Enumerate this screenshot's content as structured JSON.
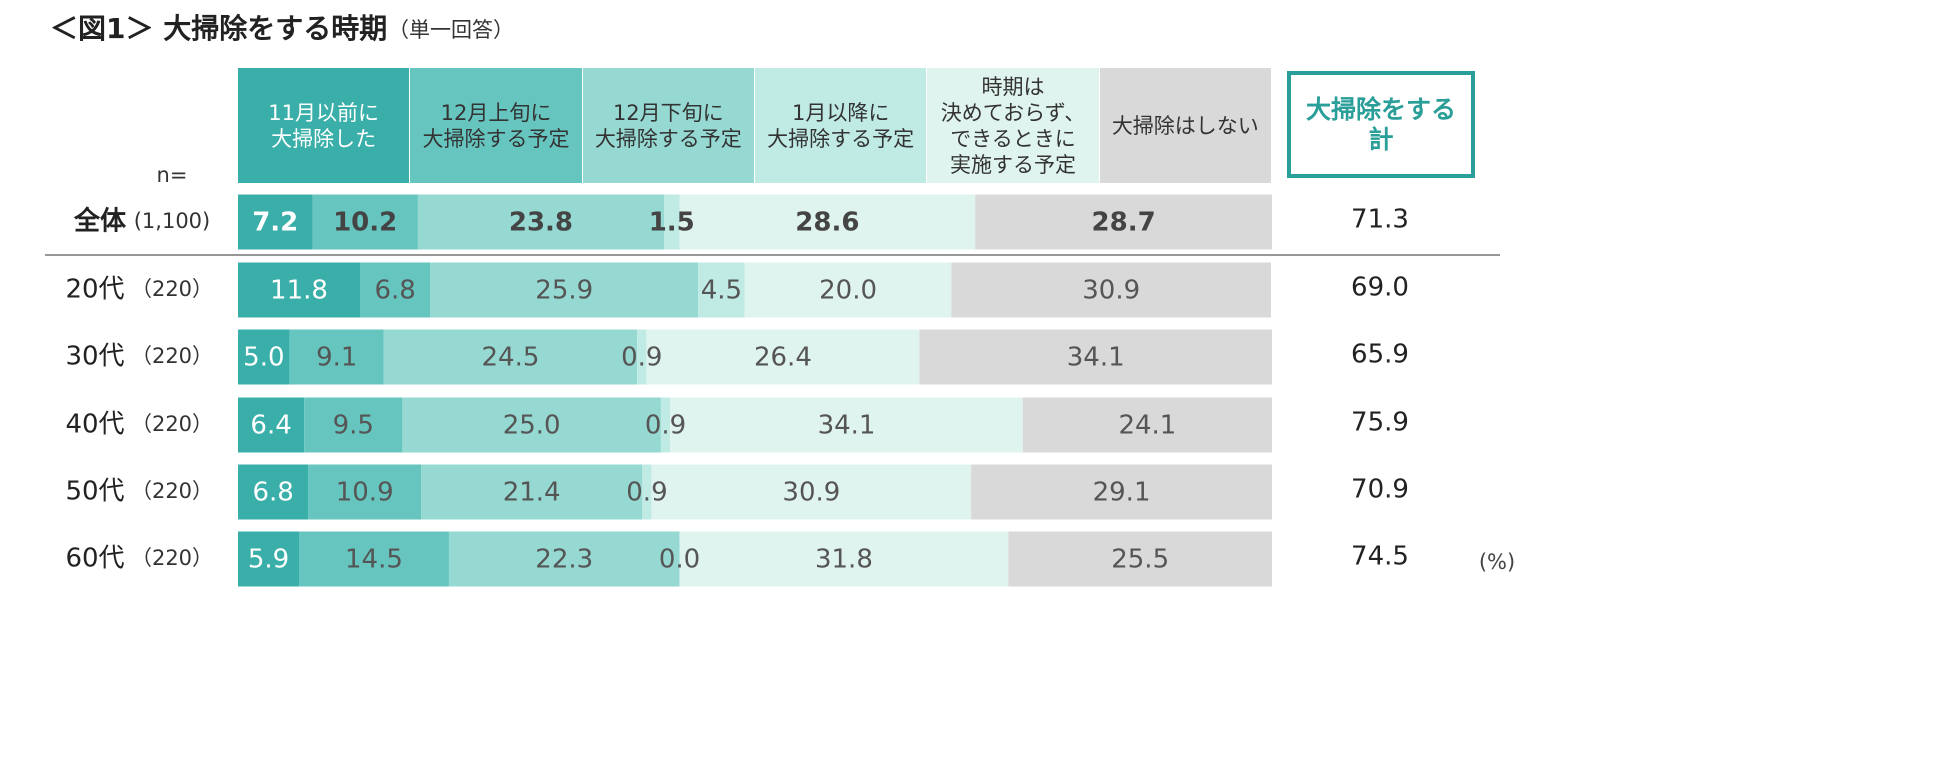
{
  "chart_data": {
    "type": "stacked-bar-horizontal",
    "title": "＜図1＞ 大掃除をする時期",
    "subtitle": "（単一回答）",
    "n_header": "n=",
    "unit_label": "(%)",
    "categories": [
      "全体",
      "20代",
      "30代",
      "40代",
      "50代",
      "60代"
    ],
    "n_labels": [
      "(1,100)",
      "（220）",
      "（220）",
      "（220）",
      "（220）",
      "（220）"
    ],
    "xlim": [
      0,
      100
    ],
    "series": [
      {
        "name": "11月以前に\n大掃除した",
        "color": "#3aafa9",
        "values": [
          7.2,
          11.8,
          5.0,
          6.4,
          6.8,
          5.9
        ],
        "value_labels": [
          "7.2",
          "11.8",
          "5.0",
          "6.4",
          "6.8",
          "5.9"
        ]
      },
      {
        "name": "12月上旬に\n大掃除する予定",
        "color": "#66c5bf",
        "values": [
          10.2,
          6.8,
          9.1,
          9.5,
          10.9,
          14.5
        ],
        "value_labels": [
          "10.2",
          "6.8",
          "9.1",
          "9.5",
          "10.9",
          "14.5"
        ]
      },
      {
        "name": "12月下旬に\n大掃除する予定",
        "color": "#96d9d3",
        "values": [
          23.8,
          25.9,
          24.5,
          25.0,
          21.4,
          22.3
        ],
        "value_labels": [
          "23.8",
          "25.9",
          "24.5",
          "25.0",
          "21.4",
          "22.3"
        ]
      },
      {
        "name": "1月以降に\n大掃除する予定",
        "color": "#c0eae4",
        "values": [
          1.5,
          4.5,
          0.9,
          0.9,
          0.9,
          0.0
        ],
        "value_labels": [
          "1.5",
          "4.5",
          "0.9",
          "0.9",
          "0.9",
          "0.0"
        ]
      },
      {
        "name": "時期は\n決めておらず、\nできるときに\n実施する予定",
        "color": "#e0f4ef",
        "values": [
          28.6,
          20.0,
          26.4,
          34.1,
          30.9,
          31.8
        ],
        "value_labels": [
          "28.6",
          "20.0",
          "26.4",
          "34.1",
          "30.9",
          "31.8"
        ]
      },
      {
        "name": "大掃除はしない",
        "color": "#d9d9d9",
        "values": [
          28.7,
          30.9,
          34.1,
          24.1,
          29.1,
          25.5
        ],
        "value_labels": [
          "28.7",
          "30.9",
          "34.1",
          "24.1",
          "29.1",
          "25.5"
        ]
      }
    ],
    "totals": {
      "name": "大掃除をする\n計",
      "color": "#2a9e98",
      "values": [
        71.3,
        69.0,
        65.9,
        75.9,
        70.9,
        74.5
      ],
      "value_labels": [
        "71.3",
        "69.0",
        "65.9",
        "75.9",
        "70.9",
        "74.5"
      ]
    }
  }
}
